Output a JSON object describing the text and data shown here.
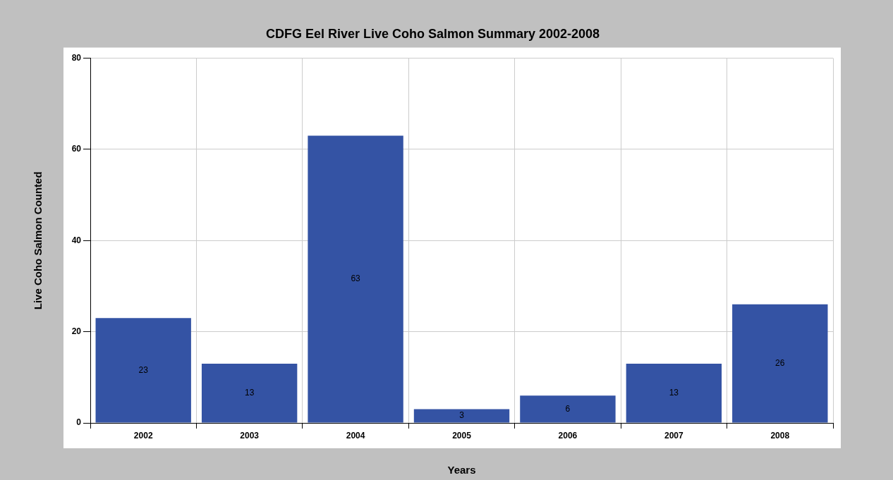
{
  "chart_data": {
    "type": "bar",
    "title": "CDFG Eel River Live Coho Salmon Summary 2002-2008",
    "xlabel": "Years",
    "ylabel": "Live Coho Salmon Counted",
    "categories": [
      "2002",
      "2003",
      "2004",
      "2005",
      "2006",
      "2007",
      "2008"
    ],
    "values": [
      23,
      13,
      63,
      3,
      6,
      13,
      26
    ],
    "color": "#3453a4",
    "ylim": [
      0,
      80
    ],
    "yticks": [
      0,
      20,
      40,
      60,
      80
    ],
    "grid": true,
    "data_labels": true
  }
}
